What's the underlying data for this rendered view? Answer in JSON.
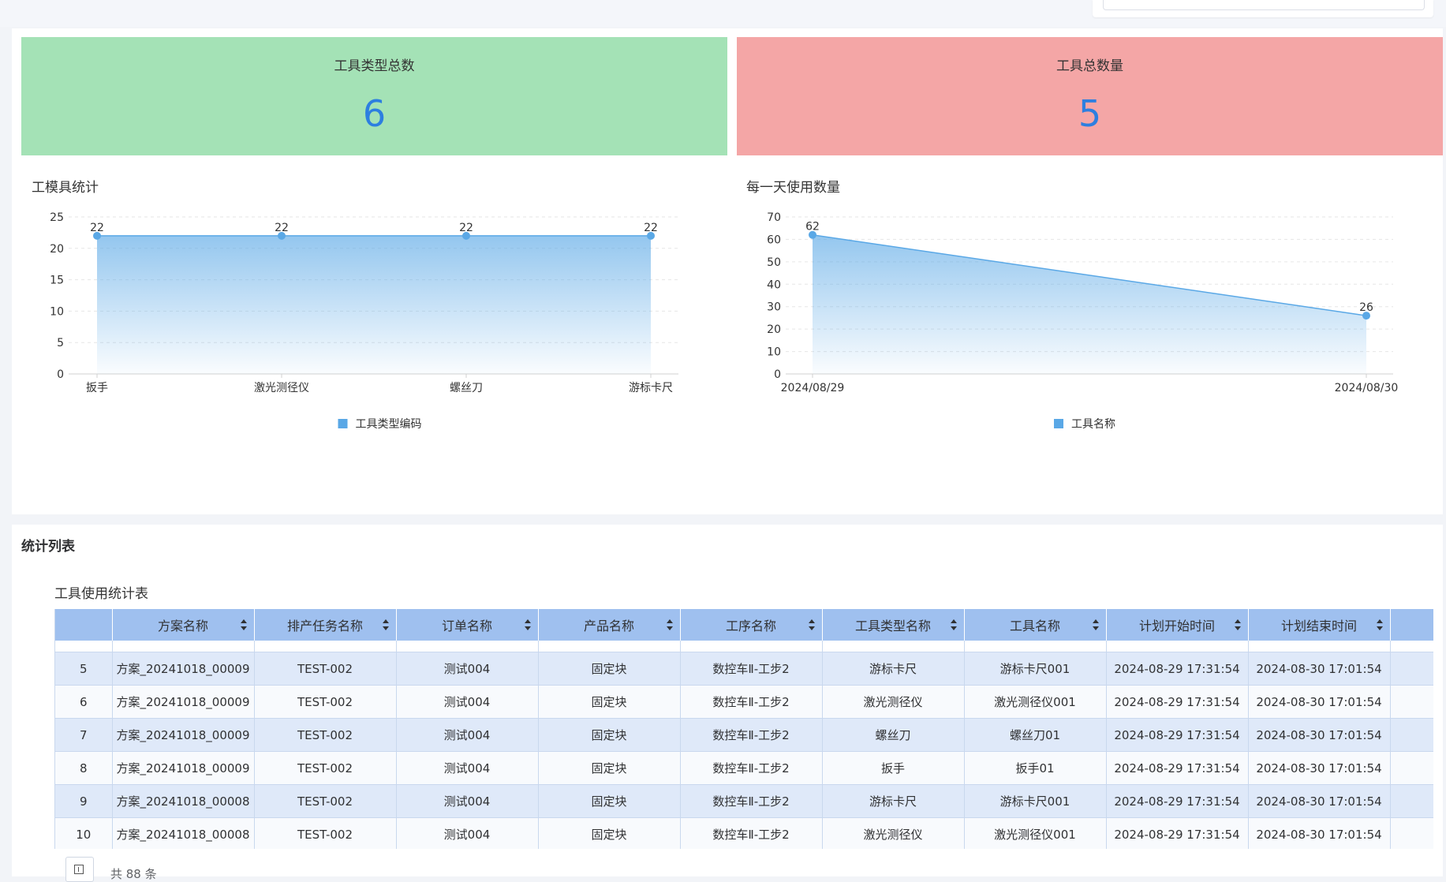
{
  "stats": {
    "tool_type_total": {
      "label": "工具类型总数",
      "value": "6",
      "color": "#a4e2b6"
    },
    "tool_total_quantity": {
      "label": "工具总数量",
      "value": "5",
      "color": "#f4a6a6"
    }
  },
  "chart_data": [
    {
      "type": "area",
      "title": "工模具统计",
      "categories": [
        "扳手",
        "激光测径仪",
        "螺丝刀",
        "游标卡尺"
      ],
      "series": [
        {
          "name": "工具类型编码",
          "values": [
            22,
            22,
            22,
            22
          ]
        }
      ],
      "yticks": [
        "0",
        "5",
        "10",
        "15",
        "20",
        "25"
      ],
      "ylim": [
        0,
        25
      ],
      "grid": true,
      "legend_position": "bottom-center",
      "color": "#5aa8e6"
    },
    {
      "type": "area",
      "title": "每一天使用数量",
      "categories": [
        "2024/08/29",
        "2024/08/30"
      ],
      "series": [
        {
          "name": "工具名称",
          "values": [
            62,
            26
          ]
        }
      ],
      "yticks": [
        "0",
        "10",
        "20",
        "30",
        "40",
        "50",
        "60",
        "70"
      ],
      "ylim": [
        0,
        70
      ],
      "grid": true,
      "legend_position": "bottom-center",
      "color": "#5aa8e6"
    }
  ],
  "section_title": "统计列表",
  "table": {
    "title": "工具使用统计表",
    "columns": [
      "",
      "方案名称",
      "排产任务名称",
      "订单名称",
      "产品名称",
      "工序名称",
      "工具类型名称",
      "工具名称",
      "计划开始时间",
      "计划结束时间",
      ""
    ],
    "rows": [
      [
        "5",
        "方案_20241018_00009",
        "TEST-002",
        "测试004",
        "固定块",
        "数控车Ⅱ-工步2",
        "游标卡尺",
        "游标卡尺001",
        "2024-08-29 17:31:54",
        "2024-08-30 17:01:54"
      ],
      [
        "6",
        "方案_20241018_00009",
        "TEST-002",
        "测试004",
        "固定块",
        "数控车Ⅱ-工步2",
        "激光测径仪",
        "激光测径仪001",
        "2024-08-29 17:31:54",
        "2024-08-30 17:01:54"
      ],
      [
        "7",
        "方案_20241018_00009",
        "TEST-002",
        "测试004",
        "固定块",
        "数控车Ⅱ-工步2",
        "螺丝刀",
        "螺丝刀01",
        "2024-08-29 17:31:54",
        "2024-08-30 17:01:54"
      ],
      [
        "8",
        "方案_20241018_00009",
        "TEST-002",
        "测试004",
        "固定块",
        "数控车Ⅱ-工步2",
        "扳手",
        "扳手01",
        "2024-08-29 17:31:54",
        "2024-08-30 17:01:54"
      ],
      [
        "9",
        "方案_20241018_00008",
        "TEST-002",
        "测试004",
        "固定块",
        "数控车Ⅱ-工步2",
        "游标卡尺",
        "游标卡尺001",
        "2024-08-29 17:31:54",
        "2024-08-30 17:01:54"
      ],
      [
        "10",
        "方案_20241018_00008",
        "TEST-002",
        "测试004",
        "固定块",
        "数控车Ⅱ-工步2",
        "激光测径仪",
        "激光测径仪001",
        "2024-08-29 17:31:54",
        "2024-08-30 17:01:54"
      ]
    ]
  },
  "pagination": {
    "total_text": "共 88 条",
    "icon": "pagination-icon"
  }
}
